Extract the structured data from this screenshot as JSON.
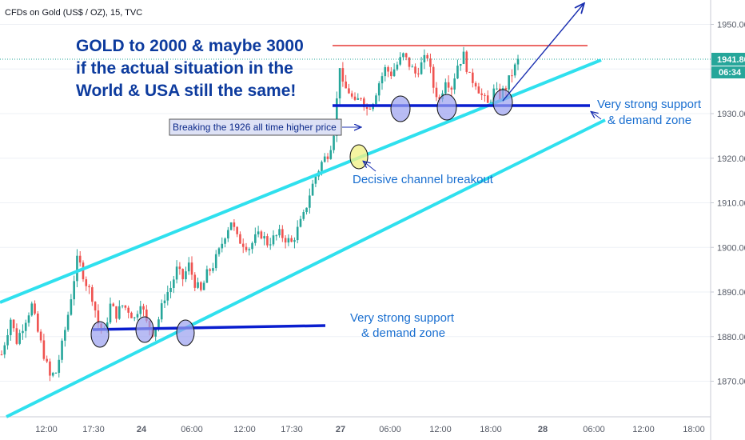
{
  "header": {
    "symbol_title": "CFDs on Gold (US$ / OZ), 15, TVC"
  },
  "price_scale": {
    "last_price": "1941.80",
    "countdown": "06:34",
    "last_price_color": "#26a69a",
    "countdown_color": "#26a69a"
  },
  "annotations": {
    "headline": [
      "GOLD to 2000 & maybe 3000",
      "if the actual situation in the",
      "World & USA still the same!"
    ],
    "breakout_box": "Breaking the 1926 all time higher price",
    "channel_breakout": "Decisive channel breakout",
    "support_upper": [
      "Very strong support",
      "& demand zone"
    ],
    "support_lower": [
      "Very strong support",
      "& demand zone"
    ]
  },
  "colors": {
    "bull": "#26a69a",
    "bear": "#ef5350",
    "channel": "#2fe0ee",
    "support": "#0a1ecf",
    "resistance": "#e53935",
    "arrow": "#1a2fb0",
    "circle_fill": "#9aa0f0",
    "circle_breakout": "#f1f18a"
  },
  "chart_data": {
    "type": "candlestick",
    "title": "CFDs on Gold (US$ / OZ), 15, TVC",
    "y_ticks": [
      1870,
      1880,
      1890,
      1900,
      1910,
      1920,
      1930,
      1940,
      1950
    ],
    "ylim": [
      1866,
      1956
    ],
    "x_tick_labels": [
      "12:00",
      "17:30",
      "24",
      "06:00",
      "12:00",
      "17:30",
      "27",
      "06:00",
      "12:00",
      "18:00",
      "28",
      "06:00",
      "12:00",
      "18:00"
    ],
    "last_price": 1941.8,
    "price_path": [
      [
        0,
        1876
      ],
      [
        3,
        1884
      ],
      [
        5,
        1879
      ],
      [
        8,
        1884
      ],
      [
        10,
        1887
      ],
      [
        12,
        1881
      ],
      [
        14,
        1876
      ],
      [
        16,
        1871
      ],
      [
        18,
        1872
      ],
      [
        20,
        1878
      ],
      [
        22,
        1885
      ],
      [
        24,
        1893
      ],
      [
        25,
        1897
      ],
      [
        26,
        1896
      ],
      [
        28,
        1892
      ],
      [
        30,
        1889
      ],
      [
        32,
        1883
      ],
      [
        34,
        1881
      ],
      [
        36,
        1887
      ],
      [
        38,
        1885
      ],
      [
        40,
        1887
      ],
      [
        42,
        1886
      ],
      [
        44,
        1884
      ],
      [
        46,
        1888
      ],
      [
        48,
        1883
      ],
      [
        50,
        1881
      ],
      [
        52,
        1884
      ],
      [
        54,
        1889
      ],
      [
        56,
        1891
      ],
      [
        58,
        1895
      ],
      [
        60,
        1893
      ],
      [
        62,
        1896
      ],
      [
        64,
        1892
      ],
      [
        66,
        1890
      ],
      [
        68,
        1894
      ],
      [
        70,
        1896
      ],
      [
        72,
        1899
      ],
      [
        74,
        1903
      ],
      [
        76,
        1906
      ],
      [
        78,
        1902
      ],
      [
        80,
        1901
      ],
      [
        82,
        1900
      ],
      [
        84,
        1902
      ],
      [
        86,
        1903
      ],
      [
        88,
        1901
      ],
      [
        90,
        1902
      ],
      [
        92,
        1903
      ],
      [
        94,
        1902
      ],
      [
        96,
        1901
      ],
      [
        98,
        1904
      ],
      [
        100,
        1907
      ],
      [
        102,
        1912
      ],
      [
        104,
        1916
      ],
      [
        106,
        1919
      ],
      [
        108,
        1921
      ],
      [
        109,
        1923
      ],
      [
        110,
        1926
      ],
      [
        111,
        1933
      ],
      [
        112,
        1941
      ],
      [
        113,
        1936
      ],
      [
        115,
        1935
      ],
      [
        117,
        1932
      ],
      [
        119,
        1934
      ],
      [
        121,
        1931
      ],
      [
        123,
        1933
      ],
      [
        125,
        1937
      ],
      [
        127,
        1940
      ],
      [
        129,
        1939
      ],
      [
        131,
        1941
      ],
      [
        133,
        1943
      ],
      [
        135,
        1941
      ],
      [
        137,
        1939
      ],
      [
        139,
        1941
      ],
      [
        141,
        1943
      ],
      [
        143,
        1936
      ],
      [
        145,
        1933
      ],
      [
        147,
        1938
      ],
      [
        149,
        1936
      ],
      [
        151,
        1941
      ],
      [
        153,
        1943
      ],
      [
        155,
        1938
      ],
      [
        157,
        1937
      ],
      [
        159,
        1934
      ],
      [
        161,
        1932
      ],
      [
        163,
        1935
      ],
      [
        165,
        1934
      ],
      [
        167,
        1936
      ],
      [
        169,
        1939
      ],
      [
        171,
        1941.8
      ]
    ],
    "levels": {
      "resistance": 1944.5,
      "support_high": 1931,
      "support_low": 1881,
      "all_time_high_reference": 1926
    }
  }
}
